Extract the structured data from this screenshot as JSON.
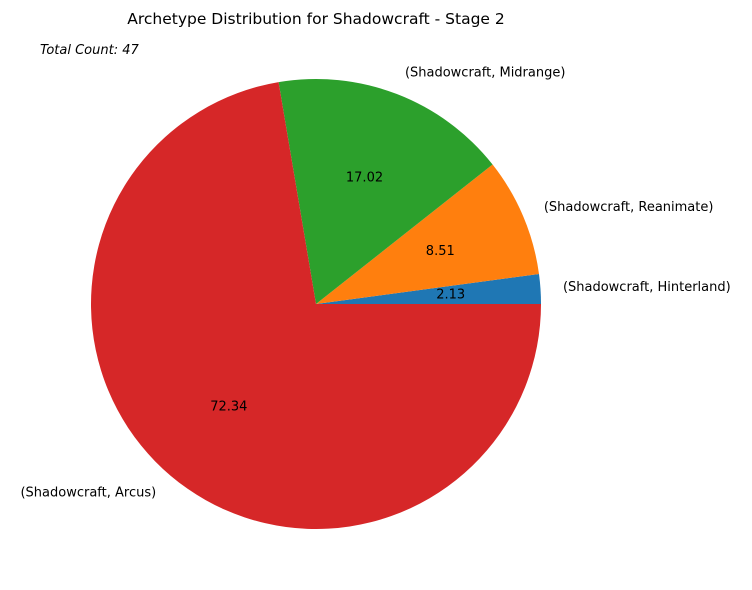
{
  "chart_data": {
    "type": "pie",
    "title": "Archetype Distribution for Shadowcraft - Stage 2",
    "annotation": "Total Count: 47",
    "slices": [
      {
        "label": "(Shadowcraft, Hinterland)",
        "value": 2.13,
        "value_label": "2.13",
        "color": "#1f77b4"
      },
      {
        "label": "(Shadowcraft, Reanimate)",
        "value": 8.51,
        "value_label": "8.51",
        "color": "#ff7f0e"
      },
      {
        "label": "(Shadowcraft, Midrange)",
        "value": 17.02,
        "value_label": "17.02",
        "color": "#2ca02c"
      },
      {
        "label": "(Shadowcraft, Arcus)",
        "value": 72.34,
        "value_label": "72.34",
        "color": "#d62728"
      }
    ],
    "start_angle": 0,
    "direction": "counterclockwise"
  }
}
